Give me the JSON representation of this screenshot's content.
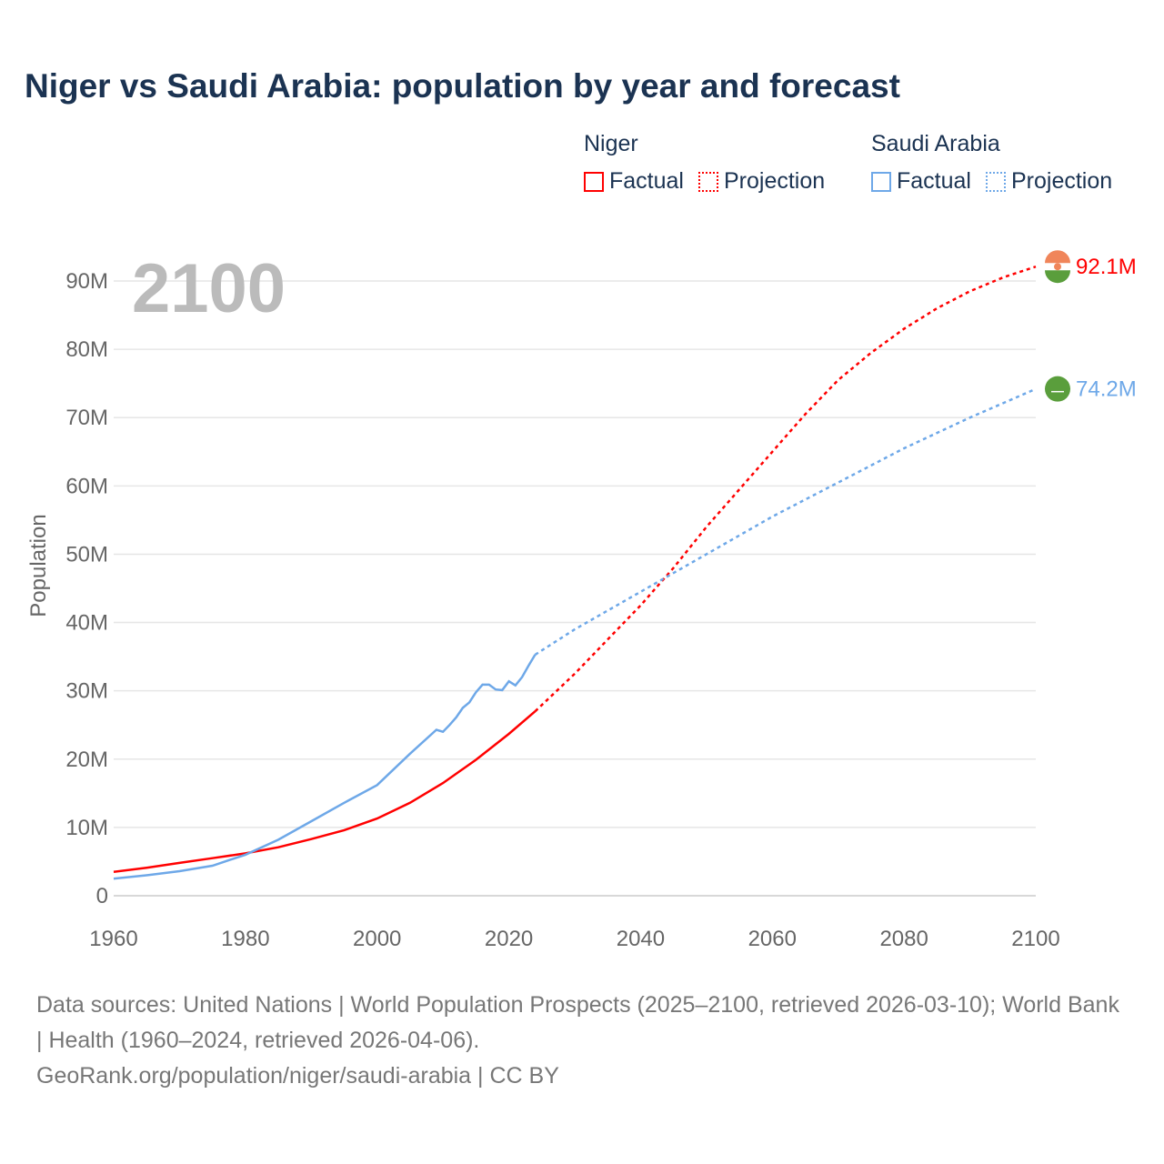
{
  "title": "Niger vs Saudi Arabia: population by year and forecast",
  "legend": {
    "groups": [
      {
        "name": "Niger",
        "color": "#ff0000",
        "factual": "Factual",
        "projection": "Projection"
      },
      {
        "name": "Saudi Arabia",
        "color": "#6ea8e8",
        "factual": "Factual",
        "projection": "Projection"
      }
    ]
  },
  "year_label": "2100",
  "footer": {
    "sources": "Data sources: United Nations | World Population Prospects (2025–2100, retrieved 2026-03-10); World Bank | Health (1960–2024, retrieved 2026-04-06).",
    "credit": "GeoRank.org/population/niger/saudi-arabia | CC BY"
  },
  "chart_data": {
    "type": "line",
    "title": "Niger vs Saudi Arabia: population by year and forecast",
    "xlabel": "",
    "ylabel": "Population",
    "xlim": [
      1960,
      2100
    ],
    "ylim": [
      0,
      90000000
    ],
    "xticks": [
      "1960",
      "1980",
      "2000",
      "2020",
      "2040",
      "2060",
      "2080",
      "2100"
    ],
    "yticks": [
      "0",
      "10M",
      "20M",
      "30M",
      "40M",
      "50M",
      "60M",
      "70M",
      "80M",
      "90M"
    ],
    "grid": true,
    "series": [
      {
        "name": "Niger",
        "color": "#ff0000",
        "end_label": "92.1M",
        "factual": [
          [
            1960,
            3.5
          ],
          [
            1965,
            4.1
          ],
          [
            1970,
            4.8
          ],
          [
            1975,
            5.5
          ],
          [
            1980,
            6.2
          ],
          [
            1985,
            7.1
          ],
          [
            1990,
            8.3
          ],
          [
            1995,
            9.6
          ],
          [
            2000,
            11.3
          ],
          [
            2005,
            13.6
          ],
          [
            2010,
            16.5
          ],
          [
            2015,
            19.9
          ],
          [
            2020,
            23.7
          ],
          [
            2024,
            27.0
          ]
        ],
        "projection": [
          [
            2024,
            27.0
          ],
          [
            2030,
            32.5
          ],
          [
            2035,
            37.5
          ],
          [
            2040,
            42.5
          ],
          [
            2045,
            48.0
          ],
          [
            2050,
            54.0
          ],
          [
            2055,
            59.5
          ],
          [
            2060,
            65.0
          ],
          [
            2065,
            70.5
          ],
          [
            2070,
            75.5
          ],
          [
            2075,
            79.5
          ],
          [
            2080,
            83.0
          ],
          [
            2085,
            86.0
          ],
          [
            2090,
            88.5
          ],
          [
            2095,
            90.5
          ],
          [
            2100,
            92.1
          ]
        ]
      },
      {
        "name": "Saudi Arabia",
        "color": "#6ea8e8",
        "end_label": "74.2M",
        "factual": [
          [
            1960,
            2.5
          ],
          [
            1965,
            3.0
          ],
          [
            1970,
            3.6
          ],
          [
            1975,
            4.4
          ],
          [
            1980,
            6.0
          ],
          [
            1985,
            8.2
          ],
          [
            1990,
            10.9
          ],
          [
            1995,
            13.6
          ],
          [
            2000,
            16.2
          ],
          [
            2005,
            20.8
          ],
          [
            2009,
            24.3
          ],
          [
            2010,
            24.0
          ],
          [
            2011,
            25.0
          ],
          [
            2012,
            26.1
          ],
          [
            2013,
            27.5
          ],
          [
            2014,
            28.3
          ],
          [
            2015,
            29.8
          ],
          [
            2016,
            30.9
          ],
          [
            2017,
            30.9
          ],
          [
            2018,
            30.2
          ],
          [
            2019,
            30.1
          ],
          [
            2020,
            31.4
          ],
          [
            2021,
            30.8
          ],
          [
            2022,
            32.0
          ],
          [
            2023,
            33.7
          ],
          [
            2024,
            35.3
          ]
        ],
        "projection": [
          [
            2024,
            35.3
          ],
          [
            2030,
            39.0
          ],
          [
            2040,
            44.5
          ],
          [
            2050,
            50.0
          ],
          [
            2060,
            55.5
          ],
          [
            2070,
            60.5
          ],
          [
            2080,
            65.5
          ],
          [
            2090,
            70.0
          ],
          [
            2100,
            74.2
          ]
        ]
      }
    ]
  }
}
